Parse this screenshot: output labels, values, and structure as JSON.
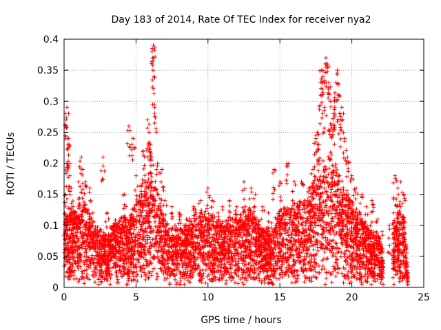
{
  "chart_data": {
    "type": "scatter",
    "title": "Day 183 of 2014, Rate Of TEC Index for receiver nya2",
    "xlabel": "GPS time / hours",
    "ylabel": "ROTI / TECUs",
    "xlim": [
      0,
      25
    ],
    "ylim": [
      0,
      0.4
    ],
    "x_ticks": [
      "0",
      "5",
      "10",
      "15",
      "20",
      "25"
    ],
    "y_ticks": [
      "0",
      "0.05",
      "0.1",
      "0.15",
      "0.2",
      "0.25",
      "0.3",
      "0.35",
      "0.4"
    ],
    "grid": true,
    "marker": "+",
    "color": "#ff0000",
    "series": [
      {
        "name": "ROTI",
        "points": [
          [
            0.1,
            0.28
          ],
          [
            0.2,
            0.29
          ],
          [
            0.3,
            0.24
          ],
          [
            0.35,
            0.23
          ],
          [
            0.2,
            0.2
          ],
          [
            0.4,
            0.18
          ],
          [
            0.5,
            0.16
          ],
          [
            0.1,
            0.15
          ],
          [
            0.7,
            0.12
          ],
          [
            1.0,
            0.17
          ],
          [
            1.2,
            0.21
          ],
          [
            1.3,
            0.19
          ],
          [
            1.5,
            0.17
          ],
          [
            1.8,
            0.16
          ],
          [
            2.0,
            0.12
          ],
          [
            2.7,
            0.21
          ],
          [
            3.0,
            0.12
          ],
          [
            3.5,
            0.1
          ],
          [
            4.2,
            0.15
          ],
          [
            4.5,
            0.26
          ],
          [
            4.8,
            0.24
          ],
          [
            5.0,
            0.18
          ],
          [
            5.5,
            0.22
          ],
          [
            5.8,
            0.27
          ],
          [
            5.9,
            0.25
          ],
          [
            6.0,
            0.23
          ],
          [
            6.1,
            0.21
          ],
          [
            6.2,
            0.39
          ],
          [
            6.2,
            0.37
          ],
          [
            6.25,
            0.34
          ],
          [
            6.3,
            0.29
          ],
          [
            6.5,
            0.2
          ],
          [
            6.8,
            0.19
          ],
          [
            7.0,
            0.14
          ],
          [
            7.5,
            0.13
          ],
          [
            8.0,
            0.12
          ],
          [
            8.5,
            0.11
          ],
          [
            9.0,
            0.13
          ],
          [
            9.5,
            0.14
          ],
          [
            10.0,
            0.16
          ],
          [
            10.3,
            0.14
          ],
          [
            10.7,
            0.12
          ],
          [
            11.0,
            0.13
          ],
          [
            11.5,
            0.14
          ],
          [
            12.0,
            0.13
          ],
          [
            12.5,
            0.17
          ],
          [
            13.0,
            0.16
          ],
          [
            13.3,
            0.15
          ],
          [
            13.8,
            0.13
          ],
          [
            14.2,
            0.12
          ],
          [
            14.6,
            0.19
          ],
          [
            15.0,
            0.17
          ],
          [
            15.5,
            0.2
          ],
          [
            16.0,
            0.17
          ],
          [
            16.5,
            0.17
          ],
          [
            17.0,
            0.16
          ],
          [
            17.3,
            0.19
          ],
          [
            17.5,
            0.24
          ],
          [
            17.6,
            0.25
          ],
          [
            17.7,
            0.23
          ],
          [
            17.8,
            0.31
          ],
          [
            17.9,
            0.35
          ],
          [
            18.0,
            0.34
          ],
          [
            18.1,
            0.29
          ],
          [
            18.2,
            0.37
          ],
          [
            18.3,
            0.36
          ],
          [
            18.4,
            0.33
          ],
          [
            18.5,
            0.3
          ],
          [
            18.6,
            0.26
          ],
          [
            18.7,
            0.28
          ],
          [
            18.8,
            0.3
          ],
          [
            18.9,
            0.33
          ],
          [
            19.0,
            0.35
          ],
          [
            19.1,
            0.31
          ],
          [
            19.2,
            0.27
          ],
          [
            19.3,
            0.29
          ],
          [
            19.5,
            0.24
          ],
          [
            19.7,
            0.21
          ],
          [
            20.0,
            0.18
          ],
          [
            20.3,
            0.16
          ],
          [
            20.7,
            0.15
          ],
          [
            21.0,
            0.13
          ],
          [
            21.4,
            0.14
          ],
          [
            21.8,
            0.11
          ],
          [
            22.1,
            0.09
          ],
          [
            22.6,
            0.1
          ],
          [
            22.9,
            0.12
          ],
          [
            23.0,
            0.18
          ],
          [
            23.2,
            0.16
          ],
          [
            23.4,
            0.17
          ],
          [
            23.6,
            0.15
          ]
        ],
        "envelope": [
          [
            0,
            0.13
          ],
          [
            0.5,
            0.12
          ],
          [
            1,
            0.12
          ],
          [
            1.5,
            0.14
          ],
          [
            2,
            0.1
          ],
          [
            2.5,
            0.09
          ],
          [
            3,
            0.08
          ],
          [
            3.5,
            0.1
          ],
          [
            4,
            0.11
          ],
          [
            4.5,
            0.11
          ],
          [
            5,
            0.13
          ],
          [
            5.5,
            0.17
          ],
          [
            6,
            0.18
          ],
          [
            6.5,
            0.16
          ],
          [
            7,
            0.1
          ],
          [
            7.5,
            0.09
          ],
          [
            8,
            0.1
          ],
          [
            8.5,
            0.1
          ],
          [
            9,
            0.11
          ],
          [
            9.5,
            0.12
          ],
          [
            10,
            0.12
          ],
          [
            10.5,
            0.11
          ],
          [
            11,
            0.1
          ],
          [
            11.5,
            0.11
          ],
          [
            12,
            0.11
          ],
          [
            12.5,
            0.12
          ],
          [
            13,
            0.12
          ],
          [
            13.5,
            0.1
          ],
          [
            14,
            0.09
          ],
          [
            14.5,
            0.1
          ],
          [
            15,
            0.12
          ],
          [
            15.5,
            0.13
          ],
          [
            16,
            0.13
          ],
          [
            16.5,
            0.14
          ],
          [
            17,
            0.15
          ],
          [
            17.5,
            0.17
          ],
          [
            18,
            0.2
          ],
          [
            18.5,
            0.21
          ],
          [
            19,
            0.19
          ],
          [
            19.5,
            0.16
          ],
          [
            20,
            0.13
          ],
          [
            20.5,
            0.12
          ],
          [
            21,
            0.1
          ],
          [
            21.5,
            0.09
          ],
          [
            22,
            0.08
          ],
          [
            22.1,
            0.06
          ],
          [
            22.3,
            0.0
          ],
          [
            22.8,
            0.0
          ],
          [
            22.9,
            0.1
          ],
          [
            23.3,
            0.12
          ],
          [
            23.7,
            0.11
          ],
          [
            23.9,
            0.0
          ]
        ],
        "baseline": 0.02,
        "gap": [
          22.2,
          22.85
        ]
      }
    ]
  }
}
